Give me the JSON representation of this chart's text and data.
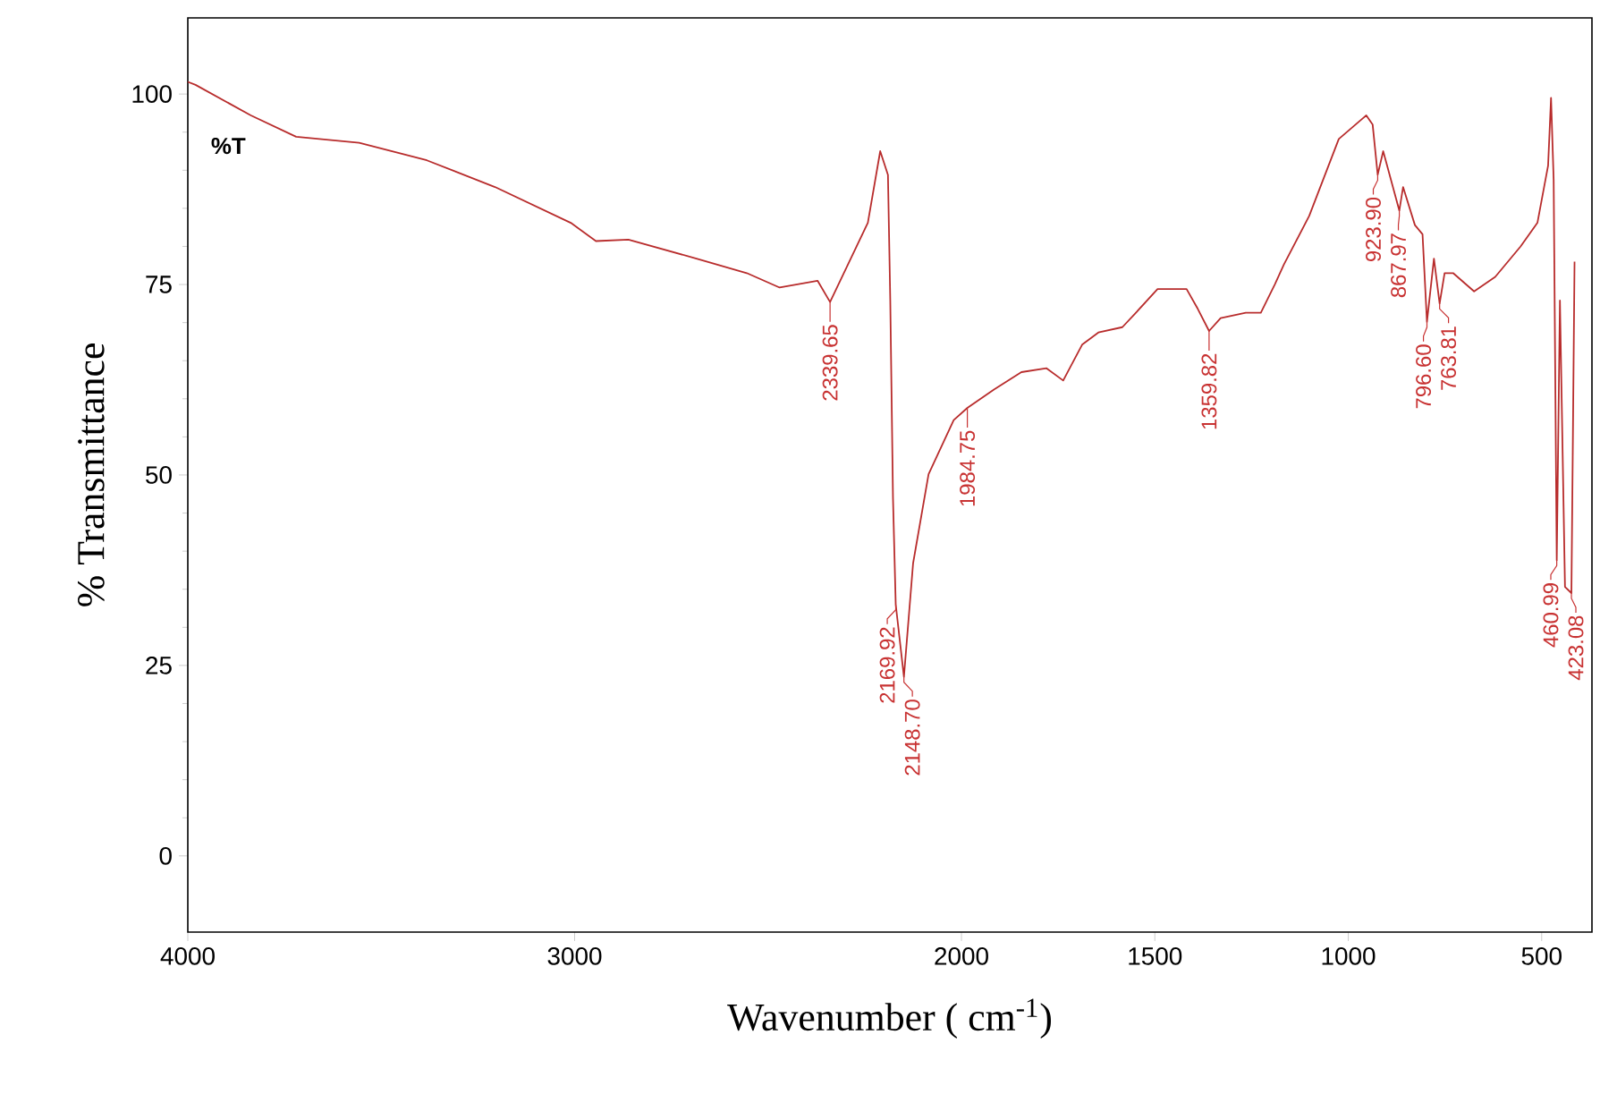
{
  "chart_data": {
    "type": "line",
    "xlabel": "Wavenumber ( cm$^{-1}$)",
    "ylabel": "% Transmittance",
    "color": "#b82c2c",
    "xlim": [
      4000,
      370
    ],
    "ylim": [
      -10,
      110
    ],
    "xticks": [
      4000,
      3000,
      2000,
      1500,
      1000,
      500
    ],
    "yticks": [
      0,
      25,
      50,
      75,
      100
    ],
    "x": [
      4000,
      3980,
      3837,
      3720,
      3557,
      3382,
      3206,
      3010,
      2945,
      2861,
      2685,
      2555,
      2470,
      2372,
      2339.65,
      2242,
      2210,
      2190,
      2184,
      2177,
      2169.92,
      2148.7,
      2125,
      2085,
      2020,
      1984.75,
      1916,
      1845,
      1780,
      1737,
      1688,
      1646,
      1584,
      1549,
      1493,
      1418,
      1389,
      1359.82,
      1330,
      1265,
      1226,
      1190,
      1166.6,
      1101,
      1024.5,
      953.4,
      937,
      923.9,
      909.7,
      867.97,
      858.3,
      827.7,
      808,
      796.6,
      778.5,
      763.81,
      751,
      729,
      674.7,
      620,
      554.5,
      511,
      483.4,
      475.8,
      469,
      460.99,
      452.8,
      439.7,
      423.08,
      415
    ],
    "values": [
      101.6,
      101.2,
      97.2,
      94.4,
      93.6,
      91.3,
      87.8,
      83.1,
      80.7,
      80.9,
      78.4,
      76.5,
      74.6,
      75.5,
      72.7,
      83.1,
      92.5,
      89.4,
      72.9,
      47,
      33,
      23.5,
      38.4,
      50.1,
      57.2,
      58.8,
      61.2,
      63.5,
      64,
      62.4,
      67.1,
      68.7,
      69.4,
      71.3,
      74.4,
      74.4,
      71.8,
      68.9,
      70.6,
      71.3,
      71.3,
      75,
      77.6,
      84,
      94.1,
      97.2,
      96,
      89.4,
      92.5,
      84.7,
      87.8,
      82.8,
      81.6,
      70.1,
      78.4,
      72.5,
      76.5,
      76.5,
      74.1,
      76,
      80,
      83.1,
      90.6,
      99.5,
      88.7,
      38.8,
      72.9,
      35.3,
      34.5,
      78
    ],
    "annotations": [
      "%T",
      {
        "text": "2339.65",
        "x": 2339.65,
        "y": 72.7
      },
      {
        "text": "2169.92",
        "x": 2169.92,
        "y": 33
      },
      {
        "text": "2148.70",
        "x": 2148.7,
        "y": 23.5
      },
      {
        "text": "1984.75",
        "x": 1984.75,
        "y": 58.8
      },
      {
        "text": "1359.82",
        "x": 1359.82,
        "y": 68.9
      },
      {
        "text": "923.90",
        "x": 923.9,
        "y": 89.4
      },
      {
        "text": "867.97",
        "x": 867.97,
        "y": 84.7
      },
      {
        "text": "796.60",
        "x": 796.6,
        "y": 70.1
      },
      {
        "text": "763.81",
        "x": 763.81,
        "y": 72.5
      },
      {
        "text": "460.99",
        "x": 460.99,
        "y": 38.8
      },
      {
        "text": "423.08",
        "x": 423.08,
        "y": 34.5
      }
    ]
  }
}
